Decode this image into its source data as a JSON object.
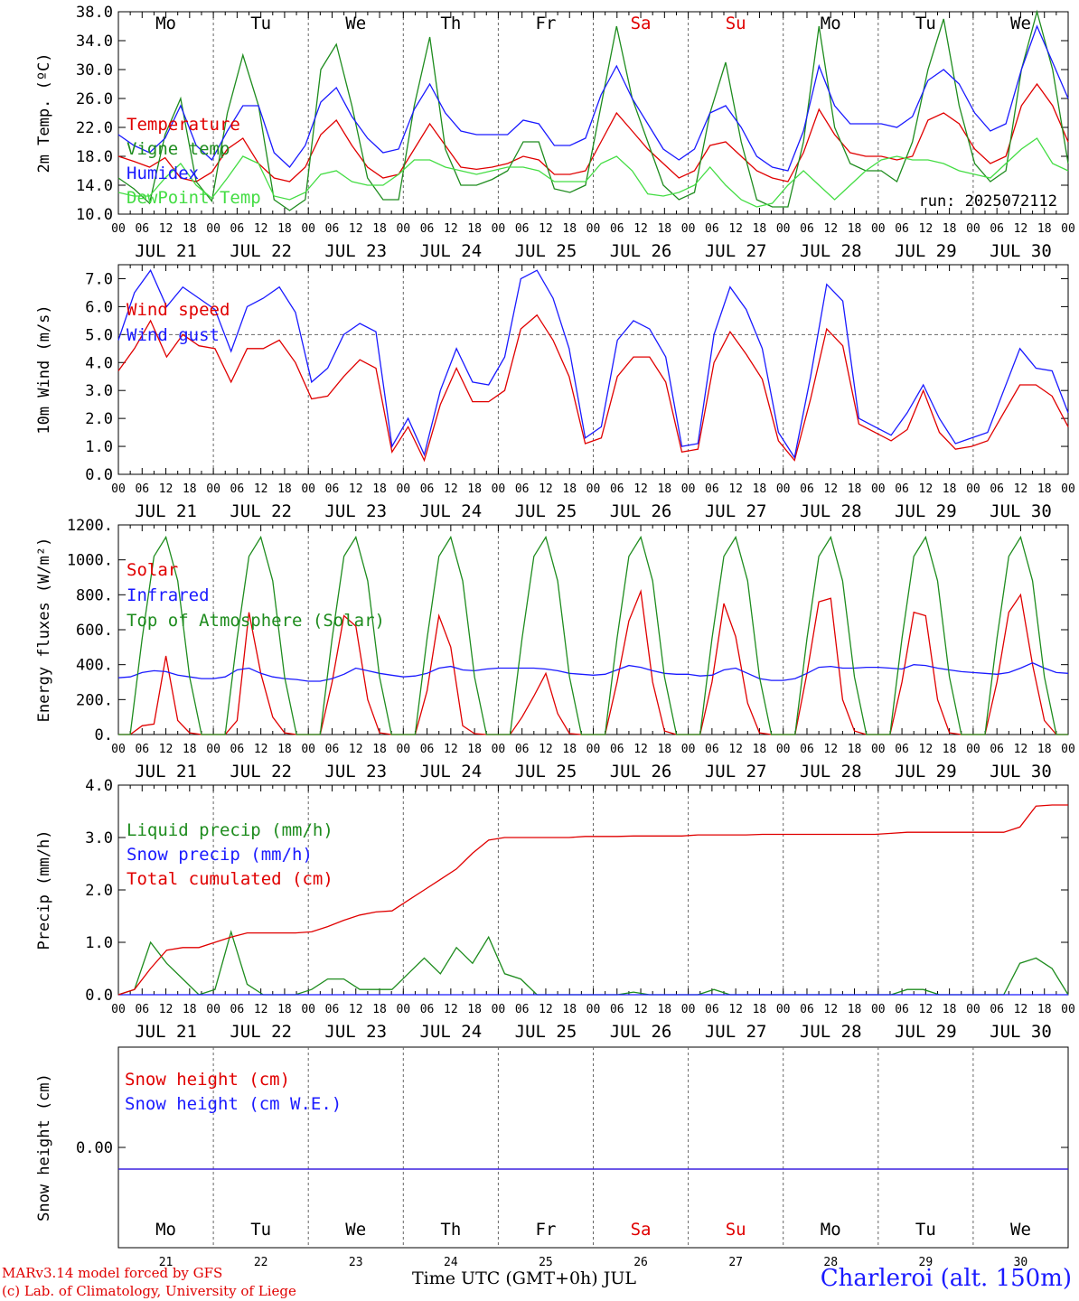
{
  "footer": {
    "credit_line1": "MARv3.14 model forced by GFS",
    "credit_line2": "(c) Lab. of Climatology, University of Liege",
    "time_label": "Time UTC (GMT+0h) JUL",
    "station": "Charleroi (alt. 150m)"
  },
  "colors": {
    "red": "#e00000",
    "green": "#1e8c1e",
    "blue": "#1a1aff",
    "lightgreen": "#44dd44",
    "grid": "#666666"
  },
  "chart_data": [
    {
      "id": "temp",
      "type": "line",
      "ylabel": "2m Temp. (ºC)",
      "ylim": [
        10,
        38
      ],
      "yticks": [
        "10.0",
        "14.0",
        "18.0",
        "22.0",
        "26.0",
        "30.0",
        "34.0",
        "38.0"
      ],
      "x": {
        "start": "2025-07-21T00:00",
        "end": "2025-07-31T00:00",
        "step_hours": 6
      },
      "day_names": [
        "Mo",
        "Tu",
        "We",
        "Th",
        "Fr",
        "Sa",
        "Su",
        "Mo",
        "Tu",
        "We"
      ],
      "day_name_colors": [
        "black",
        "black",
        "black",
        "black",
        "black",
        "red",
        "red",
        "black",
        "black",
        "black"
      ],
      "date_labels": [
        "JUL 21",
        "JUL 22",
        "JUL 23",
        "JUL 24",
        "JUL 25",
        "JUL 26",
        "JUL 27",
        "JUL 28",
        "JUL 29",
        "JUL 30"
      ],
      "hour_labels": [
        "00",
        "06",
        "12",
        "18"
      ],
      "annotation": "run: 2025072112",
      "series": [
        {
          "name": "Temperature",
          "color": "red",
          "values": [
            18,
            17.3,
            16.5,
            17.8,
            15,
            14.5,
            15.8,
            19,
            20.5,
            17,
            15,
            14.5,
            16.5,
            21,
            23,
            19.5,
            16.5,
            15,
            15.5,
            19,
            22.5,
            19.5,
            16.5,
            16.2,
            16.5,
            17,
            18,
            17.5,
            15.5,
            15.5,
            16,
            20,
            24,
            21.5,
            19,
            17,
            15,
            16,
            19.5,
            20,
            18,
            16,
            15,
            14.5,
            18.5,
            24.5,
            21,
            18.5,
            18,
            18,
            17.5,
            18,
            23,
            24,
            22.5,
            19,
            17,
            18,
            25,
            28,
            25,
            20
          ]
        },
        {
          "name": "Vigne temp",
          "color": "green",
          "values": [
            15,
            13.5,
            11.5,
            21,
            26,
            14.5,
            11.8,
            24,
            32,
            25,
            12,
            10.5,
            12,
            30,
            33.5,
            25,
            15,
            12,
            12,
            25,
            34.5,
            19,
            14,
            14,
            14.8,
            16,
            20,
            20,
            13.5,
            13,
            14,
            25,
            36,
            26,
            20,
            14,
            12,
            13,
            24,
            31,
            20,
            12,
            11,
            11,
            20,
            36,
            22,
            17,
            16,
            16,
            14.5,
            20,
            30,
            37,
            25,
            17,
            14.5,
            16,
            30,
            38,
            30,
            17
          ]
        },
        {
          "name": "Humidex",
          "color": "blue",
          "values": [
            21,
            19.5,
            18.5,
            20.5,
            25,
            19.5,
            17.5,
            21.5,
            25,
            25,
            18.5,
            16.5,
            19.5,
            25.5,
            27.5,
            23.5,
            20.5,
            18.5,
            19,
            24.5,
            28,
            24,
            21.5,
            21,
            21,
            21,
            23,
            22.5,
            19.5,
            19.5,
            20.5,
            26.5,
            30.5,
            26,
            22.5,
            19,
            17.5,
            19,
            24,
            25,
            22,
            18,
            16.5,
            16,
            21.5,
            30.5,
            25,
            22.5,
            22.5,
            22.5,
            22,
            23.5,
            28.5,
            30,
            28,
            24,
            21.5,
            22.5,
            30,
            36,
            31,
            26
          ]
        },
        {
          "name": "DewPoint Temp",
          "color": "lightgreen",
          "values": [
            13,
            12.5,
            12.5,
            15,
            17,
            14,
            12.2,
            15,
            18,
            17,
            12.5,
            12,
            13,
            15.5,
            16,
            14.5,
            14,
            14,
            15.5,
            17.5,
            17.5,
            16.5,
            16,
            15.5,
            16,
            16.5,
            16.5,
            16,
            14.5,
            14.5,
            14.5,
            17,
            18,
            16,
            12.8,
            12.5,
            13,
            14,
            16.5,
            14,
            12,
            11,
            11.5,
            14,
            16,
            14,
            12,
            14,
            16,
            17.5,
            18,
            17.5,
            17.5,
            17,
            16,
            15.5,
            15,
            17,
            19,
            20.5,
            17,
            16
          ]
        }
      ]
    },
    {
      "id": "wind",
      "type": "line",
      "ylabel": "10m Wind (m/s)",
      "ylim": [
        0,
        7.5
      ],
      "yticks": [
        "0.0",
        "1.0",
        "2.0",
        "3.0",
        "4.0",
        "5.0",
        "6.0",
        "7.0"
      ],
      "reference_line": 5.0,
      "x": {
        "start": "2025-07-21T00:00",
        "end": "2025-07-31T00:00",
        "step_hours": 6
      },
      "date_labels": [
        "JUL 21",
        "JUL 22",
        "JUL 23",
        "JUL 24",
        "JUL 25",
        "JUL 26",
        "JUL 27",
        "JUL 28",
        "JUL 29",
        "JUL 30"
      ],
      "hour_labels": [
        "00",
        "06",
        "12",
        "18"
      ],
      "series": [
        {
          "name": "Wind speed",
          "color": "red",
          "values": [
            3.7,
            4.5,
            5.5,
            4.2,
            5,
            4.6,
            4.5,
            3.3,
            4.5,
            4.5,
            4.8,
            4,
            2.7,
            2.8,
            3.5,
            4.1,
            3.8,
            0.8,
            1.7,
            0.5,
            2.5,
            3.8,
            2.6,
            2.6,
            3,
            5.2,
            5.7,
            4.8,
            3.5,
            1.1,
            1.3,
            3.5,
            4.2,
            4.2,
            3.3,
            0.8,
            0.9,
            4,
            5.1,
            4.3,
            3.4,
            1.2,
            0.5,
            2.7,
            5.2,
            4.6,
            1.8,
            1.5,
            1.2,
            1.6,
            3,
            1.5,
            0.9,
            1,
            1.2,
            2.2,
            3.2,
            3.2,
            2.8,
            1.7
          ]
        },
        {
          "name": "Wind gust",
          "color": "blue",
          "values": [
            4.8,
            6.5,
            7.3,
            6,
            6.7,
            6.3,
            5.9,
            4.4,
            6,
            6.3,
            6.7,
            5.8,
            3.3,
            3.8,
            5,
            5.4,
            5.1,
            1,
            2,
            0.7,
            3,
            4.5,
            3.3,
            3.2,
            4.2,
            7,
            7.3,
            6.3,
            4.5,
            1.3,
            1.7,
            4.8,
            5.5,
            5.2,
            4.2,
            1,
            1.1,
            5,
            6.7,
            5.9,
            4.5,
            1.5,
            0.6,
            3.5,
            6.8,
            6.2,
            2,
            1.7,
            1.4,
            2.2,
            3.2,
            2,
            1.1,
            1.3,
            1.5,
            3,
            4.5,
            3.8,
            3.7,
            2.2
          ]
        }
      ]
    },
    {
      "id": "energy",
      "type": "line",
      "ylabel": "Energy fluxes (W/m²)",
      "ylim": [
        0,
        1200
      ],
      "yticks": [
        "0.",
        "200.",
        "400.",
        "600.",
        "800.",
        "1000.",
        "1200."
      ],
      "x": {
        "start": "2025-07-21T00:00",
        "end": "2025-07-31T00:00",
        "step_hours": 3
      },
      "date_labels": [
        "JUL 21",
        "JUL 22",
        "JUL 23",
        "JUL 24",
        "JUL 25",
        "JUL 26",
        "JUL 27",
        "JUL 28",
        "JUL 29",
        "JUL 30"
      ],
      "hour_labels": [
        "00",
        "06",
        "12",
        "18"
      ],
      "series": [
        {
          "name": "Solar",
          "color": "red",
          "values": [
            0,
            0,
            50,
            60,
            450,
            80,
            10,
            0,
            0,
            0,
            80,
            700,
            350,
            100,
            10,
            0,
            0,
            0,
            300,
            680,
            620,
            200,
            10,
            0,
            0,
            0,
            250,
            680,
            500,
            50,
            5,
            0,
            0,
            0,
            100,
            220,
            350,
            120,
            5,
            0,
            0,
            0,
            300,
            650,
            820,
            300,
            20,
            0,
            0,
            0,
            300,
            750,
            560,
            180,
            10,
            0,
            0,
            0,
            350,
            760,
            780,
            200,
            20,
            0,
            0,
            0,
            300,
            700,
            680,
            200,
            10,
            0,
            0,
            0,
            300,
            700,
            800,
            400,
            80,
            0,
            0
          ]
        },
        {
          "name": "Infrared",
          "color": "blue",
          "values": [
            325,
            330,
            355,
            365,
            360,
            340,
            330,
            320,
            320,
            330,
            370,
            380,
            350,
            330,
            320,
            315,
            305,
            305,
            320,
            345,
            380,
            365,
            350,
            340,
            330,
            335,
            350,
            380,
            390,
            370,
            365,
            375,
            380,
            380,
            380,
            380,
            375,
            365,
            350,
            345,
            340,
            345,
            370,
            395,
            385,
            365,
            350,
            345,
            345,
            335,
            340,
            370,
            380,
            350,
            320,
            310,
            310,
            320,
            350,
            385,
            390,
            380,
            380,
            385,
            385,
            380,
            375,
            400,
            395,
            380,
            370,
            360,
            355,
            350,
            345,
            355,
            380,
            410,
            380,
            355,
            350
          ]
        },
        {
          "name": "Top of Atmosphere (Solar)",
          "color": "green",
          "values": [
            0,
            0,
            550,
            1020,
            1130,
            880,
            330,
            0,
            0,
            0,
            550,
            1020,
            1130,
            880,
            330,
            0,
            0,
            0,
            550,
            1020,
            1130,
            880,
            330,
            0,
            0,
            0,
            550,
            1020,
            1130,
            880,
            330,
            0,
            0,
            0,
            550,
            1020,
            1130,
            880,
            330,
            0,
            0,
            0,
            550,
            1020,
            1130,
            880,
            330,
            0,
            0,
            0,
            550,
            1020,
            1130,
            880,
            330,
            0,
            0,
            0,
            550,
            1020,
            1130,
            880,
            330,
            0,
            0,
            0,
            550,
            1020,
            1130,
            880,
            330,
            0,
            0,
            0,
            550,
            1020,
            1130,
            880,
            330,
            0,
            0
          ]
        }
      ]
    },
    {
      "id": "precip",
      "type": "line",
      "ylabel": "Precip (mm/h)",
      "ylim": [
        0,
        4
      ],
      "yticks": [
        "0.0",
        "1.0",
        "2.0",
        "3.0",
        "4.0"
      ],
      "x": {
        "start": "2025-07-21T00:00",
        "end": "2025-07-31T00:00",
        "step_hours": 6
      },
      "date_labels": [
        "JUL 21",
        "JUL 22",
        "JUL 23",
        "JUL 24",
        "JUL 25",
        "JUL 26",
        "JUL 27",
        "JUL 28",
        "JUL 29",
        "JUL 30"
      ],
      "hour_labels": [
        "00",
        "06",
        "12",
        "18"
      ],
      "series": [
        {
          "name": "Liquid precip (mm/h)",
          "color": "green",
          "values": [
            0,
            0.1,
            1,
            0.6,
            0.3,
            0,
            0.1,
            1.2,
            0.2,
            0,
            0,
            0,
            0.1,
            0.3,
            0.3,
            0.1,
            0.1,
            0.1,
            0.4,
            0.7,
            0.4,
            0.9,
            0.6,
            1.1,
            0.4,
            0.3,
            0,
            0,
            0,
            0,
            0,
            0,
            0.05,
            0,
            0,
            0,
            0,
            0.1,
            0,
            0,
            0,
            0,
            0,
            0,
            0,
            0,
            0,
            0,
            0,
            0.1,
            0.1,
            0,
            0,
            0,
            0,
            0,
            0.6,
            0.7,
            0.5,
            0
          ]
        },
        {
          "name": "Snow precip (mm/h)",
          "color": "blue",
          "values": [
            0,
            0,
            0,
            0,
            0,
            0,
            0,
            0,
            0,
            0,
            0,
            0,
            0,
            0,
            0,
            0,
            0,
            0,
            0,
            0,
            0,
            0,
            0,
            0,
            0,
            0,
            0,
            0,
            0,
            0,
            0,
            0,
            0,
            0,
            0,
            0,
            0,
            0,
            0,
            0,
            0,
            0,
            0,
            0,
            0,
            0,
            0,
            0,
            0,
            0,
            0,
            0,
            0,
            0,
            0,
            0,
            0,
            0,
            0,
            0
          ]
        },
        {
          "name": "Total cumulated (cm)",
          "color": "red",
          "values": [
            0,
            0.1,
            0.5,
            0.85,
            0.9,
            0.9,
            1,
            1.1,
            1.18,
            1.18,
            1.18,
            1.18,
            1.2,
            1.3,
            1.42,
            1.52,
            1.58,
            1.6,
            1.8,
            2,
            2.2,
            2.4,
            2.7,
            2.95,
            3,
            3,
            3,
            3,
            3,
            3.02,
            3.02,
            3.02,
            3.03,
            3.03,
            3.03,
            3.03,
            3.05,
            3.05,
            3.05,
            3.05,
            3.06,
            3.06,
            3.06,
            3.06,
            3.06,
            3.06,
            3.06,
            3.06,
            3.08,
            3.1,
            3.1,
            3.1,
            3.1,
            3.1,
            3.1,
            3.1,
            3.2,
            3.6,
            3.62,
            3.62
          ]
        }
      ]
    },
    {
      "id": "snow",
      "type": "line",
      "ylabel": "Snow height (cm)",
      "yticks": [
        "0.00"
      ],
      "x": {
        "start": "2025-07-21T00:00",
        "end": "2025-07-31T00:00"
      },
      "day_names": [
        "Mo",
        "Tu",
        "We",
        "Th",
        "Fr",
        "Sa",
        "Su",
        "Mo",
        "Tu",
        "We"
      ],
      "day_name_colors": [
        "black",
        "black",
        "black",
        "black",
        "black",
        "red",
        "red",
        "black",
        "black",
        "black"
      ],
      "day_numbers": [
        "21",
        "22",
        "23",
        "24",
        "25",
        "26",
        "27",
        "28",
        "29",
        "30"
      ],
      "series": [
        {
          "name": "Snow height (cm)",
          "color": "red",
          "values": [
            0,
            0
          ]
        },
        {
          "name": "Snow height (cm W.E.)",
          "color": "blue",
          "values": [
            0,
            0
          ]
        }
      ]
    }
  ]
}
